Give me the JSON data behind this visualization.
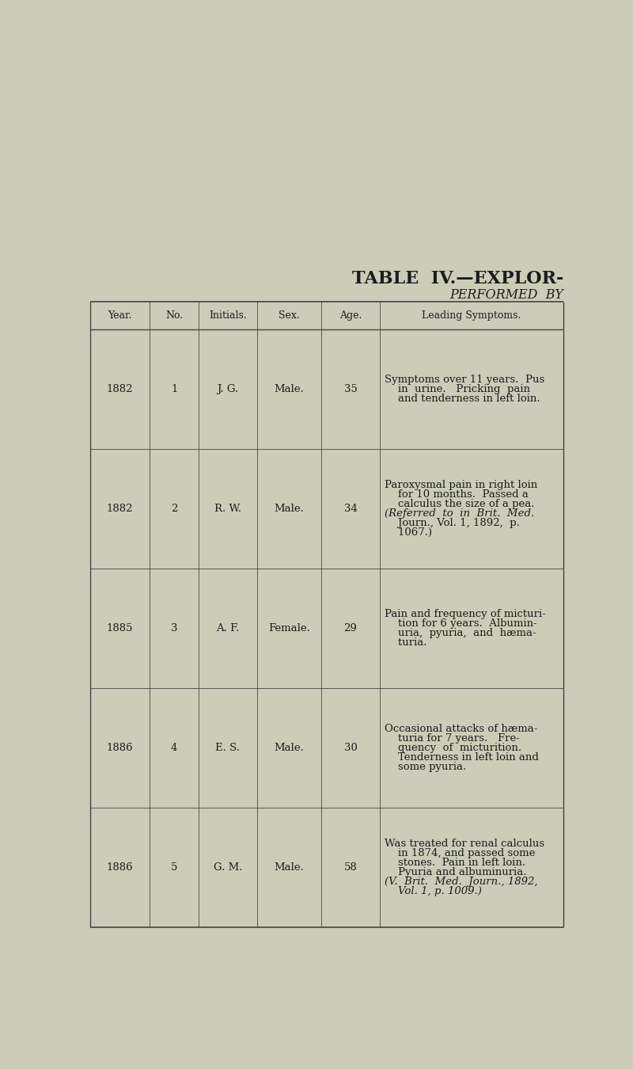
{
  "bg_color": "#cccdb8",
  "title1": "TABLE  IV.—EXPLOR-",
  "title2": "PERFORMED  BY",
  "columns": [
    "Year.",
    "No.",
    "Initials.",
    "Sex.",
    "Age.",
    "Leading Symptoms."
  ],
  "rows": [
    {
      "year": "1882",
      "no": "1",
      "initials": "J. G.",
      "sex": "Male.",
      "age": "35",
      "symptoms_lines": [
        [
          "Symptoms over 11 years.  Pus",
          false
        ],
        [
          "    in  urine.   Pricking  pain",
          false
        ],
        [
          "    and tenderness in left loin.",
          false
        ]
      ]
    },
    {
      "year": "1882",
      "no": "2",
      "initials": "R. W.",
      "sex": "Male.",
      "age": "34",
      "symptoms_lines": [
        [
          "Paroxysmal pain in right loin",
          false
        ],
        [
          "    for 10 months.  Passed a",
          false
        ],
        [
          "    calculus the size of a pea.",
          false
        ],
        [
          "(Referred  to  in  Brit.  Med.",
          false
        ],
        [
          "    Journ., Vol. 1, 1892,  p.",
          false
        ],
        [
          "    1067.)",
          false
        ]
      ]
    },
    {
      "year": "1885",
      "no": "3",
      "initials": "A. F.",
      "sex": "Female.",
      "age": "29",
      "symptoms_lines": [
        [
          "Pain and frequency of micturi-",
          false
        ],
        [
          "    tion for 6 years.  Albumin-",
          false
        ],
        [
          "    uria,  pyuria,  and  hæma-",
          false
        ],
        [
          "    turia.",
          false
        ]
      ]
    },
    {
      "year": "1886",
      "no": "4",
      "initials": "E. S.",
      "sex": "Male.",
      "age": "30",
      "symptoms_lines": [
        [
          "Occasional attacks of hæma-",
          false
        ],
        [
          "    turia for 7 years.   Fre-",
          false
        ],
        [
          "    quency  of  micturition.",
          false
        ],
        [
          "    Tenderness in left loin and",
          false
        ],
        [
          "    some pyuria.",
          false
        ]
      ]
    },
    {
      "year": "1886",
      "no": "5",
      "initials": "G. M.",
      "sex": "Male.",
      "age": "58",
      "symptoms_lines": [
        [
          "Was treated for renal calculus",
          false
        ],
        [
          "    in 1874, and passed some",
          false
        ],
        [
          "    stones.  Pain in left loin.",
          false
        ],
        [
          "    Pyuria and albuminuria.",
          false
        ],
        [
          "(V.  Brit.  Med.  Journ., 1892,",
          true
        ],
        [
          "    Vol. 1, p. 1009.)",
          true
        ]
      ]
    }
  ],
  "text_color": "#1c1c1c",
  "line_color": "#444444",
  "title1_fontsize": 16,
  "title2_fontsize": 11.5,
  "header_fontsize": 9.0,
  "body_fontsize": 9.5
}
